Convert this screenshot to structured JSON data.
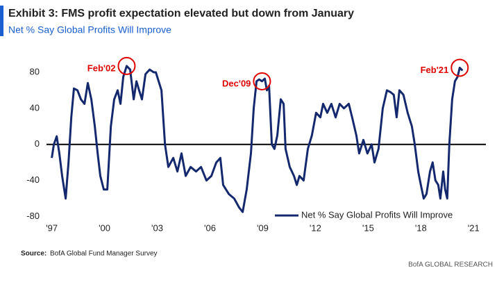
{
  "chart_data": {
    "type": "line",
    "title": "Exhibit 3: FMS profit expectation elevated but down from January",
    "subtitle": "Net % Say Global Profits Will Improve",
    "source_label": "Source:",
    "source": "BofA Global Fund Manager Survey",
    "brand": "BofA GLOBAL RESEARCH",
    "legend": "lower right",
    "xlim": [
      1996.7,
      2021.7
    ],
    "xticks": [
      {
        "value": 1997,
        "label": "'97"
      },
      {
        "value": 2000,
        "label": "'00"
      },
      {
        "value": 2003,
        "label": "'03"
      },
      {
        "value": 2006,
        "label": "'06"
      },
      {
        "value": 2009,
        "label": "'09"
      },
      {
        "value": 2012,
        "label": "'12"
      },
      {
        "value": 2015,
        "label": "'15"
      },
      {
        "value": 2018,
        "label": "'18"
      },
      {
        "value": 2021,
        "label": "'21"
      }
    ],
    "ylim": [
      -85,
      90
    ],
    "yticks": [
      -80,
      -40,
      0,
      40,
      80
    ],
    "zero_line": true,
    "x": [
      1997.0,
      1997.12,
      1997.28,
      1997.43,
      1997.59,
      1997.79,
      1997.95,
      1998.11,
      1998.26,
      1998.46,
      1998.66,
      1998.86,
      1999.05,
      1999.25,
      1999.45,
      1999.61,
      1999.76,
      1999.96,
      2000.16,
      2000.36,
      2000.55,
      2000.75,
      2000.91,
      2001.07,
      2001.26,
      2001.46,
      2001.66,
      2001.82,
      2001.97,
      2002.13,
      2002.33,
      2002.57,
      2002.8,
      2002.92,
      2003.24,
      2003.44,
      2003.63,
      2003.91,
      2004.15,
      2004.38,
      2004.62,
      2004.9,
      2005.21,
      2005.49,
      2005.8,
      2006.08,
      2006.36,
      2006.59,
      2006.75,
      2007.07,
      2007.38,
      2007.66,
      2007.86,
      2008.09,
      2008.33,
      2008.49,
      2008.65,
      2008.8,
      2008.96,
      2009.12,
      2009.24,
      2009.36,
      2009.52,
      2009.67,
      2009.83,
      2010.03,
      2010.19,
      2010.3,
      2010.54,
      2010.78,
      2010.94,
      2011.09,
      2011.33,
      2011.57,
      2011.8,
      2012.04,
      2012.28,
      2012.44,
      2012.67,
      2012.91,
      2013.15,
      2013.38,
      2013.62,
      2013.9,
      2014.09,
      2014.33,
      2014.49,
      2014.73,
      2014.96,
      2015.2,
      2015.36,
      2015.59,
      2015.83,
      2016.07,
      2016.27,
      2016.46,
      2016.62,
      2016.78,
      2017.01,
      2017.25,
      2017.49,
      2017.65,
      2017.85,
      2018.0,
      2018.16,
      2018.32,
      2018.52,
      2018.67,
      2018.83,
      2018.99,
      2019.11,
      2019.27,
      2019.38,
      2019.5,
      2019.62,
      2019.78,
      2019.94,
      2020.09,
      2020.21,
      2020.37
    ],
    "series": [
      {
        "name": "Net % Say Global Profits Will Improve",
        "color": "#14286e",
        "values": [
          -15,
          0,
          9,
          -10,
          -35,
          -60,
          -20,
          30,
          62,
          60,
          50,
          45,
          68,
          50,
          20,
          -10,
          -35,
          -50,
          -50,
          20,
          50,
          60,
          45,
          75,
          87,
          83,
          50,
          70,
          60,
          50,
          78,
          83,
          80,
          80,
          60,
          0,
          -25,
          -15,
          -30,
          -10,
          -35,
          -25,
          -30,
          -25,
          -40,
          -35,
          -20,
          -15,
          -45,
          -55,
          -60,
          -70,
          -75,
          -50,
          -10,
          40,
          70,
          72,
          70,
          73,
          60,
          65,
          0,
          -5,
          10,
          50,
          45,
          -5,
          -25,
          -35,
          -45,
          -35,
          -40,
          -5,
          10,
          35,
          30,
          45,
          35,
          45,
          30,
          45,
          40,
          45,
          30,
          10,
          -10,
          5,
          -10,
          0,
          -20,
          -5,
          40,
          60,
          58,
          55,
          30,
          60,
          55,
          35,
          20,
          0,
          -30,
          -45,
          -60,
          -55,
          -30,
          -20,
          -40,
          -45,
          -60,
          -30,
          -50,
          -60,
          0,
          50,
          70,
          75,
          85,
          82
        ]
      }
    ],
    "annotations": [
      {
        "text": "Feb'02",
        "x": 2001.26,
        "y": 87
      },
      {
        "text": "Dec'09",
        "x": 2008.96,
        "y": 70
      },
      {
        "text": "Feb'21",
        "x": 2020.21,
        "y": 85
      }
    ]
  }
}
